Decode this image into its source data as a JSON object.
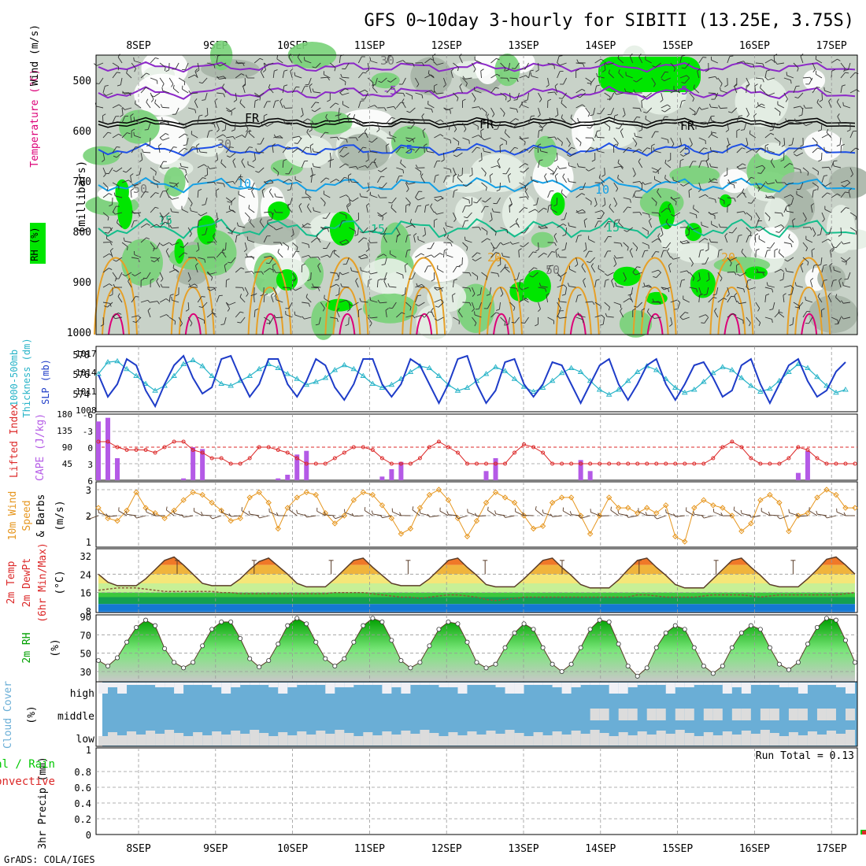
{
  "title": "GFS 0~10day 3-hourly for SIBITI (13.25E, 3.75S)",
  "credit": "GrADS: COLA/IGES",
  "dates": [
    "8SEP",
    "9SEP",
    "10SEP",
    "11SEP",
    "12SEP",
    "13SEP",
    "14SEP",
    "15SEP",
    "16SEP",
    "17SEP"
  ],
  "colors": {
    "rh_light": "#e6f0e6",
    "rh_mid": "#c8d2c8",
    "rh_dark": "#a6b4a6",
    "rh_green": "#78d278",
    "rh_bright": "#00e600",
    "temp_purple": "#8c28c8",
    "temp_blue": "#1e50e6",
    "temp_cyan": "#14a0e6",
    "temp_teal": "#14be8c",
    "temp_orange": "#e6a028",
    "temp_magenta": "#dc0078",
    "slp": "#1e3cc8",
    "thickness": "#28b4c8",
    "lifted": "#dc2828",
    "cape": "#b45ae6",
    "wind": "#e6961e",
    "barb": "#5a3c28",
    "rh2m": "#00a000",
    "cloud": "#6aaed6",
    "precip_total": "#00c800",
    "precip_conv": "#dc2828"
  },
  "panels": {
    "upper": {
      "labels": [
        "RH (%)",
        "Temperature (°C)",
        "Wind (m/s)"
      ],
      "axis": "(millibars)",
      "levels": [
        "500",
        "600",
        "700",
        "800",
        "900",
        "1000"
      ],
      "contour_labels": [
        "-5",
        "FR",
        "5",
        "10",
        "15",
        "20",
        "30",
        "50"
      ]
    },
    "slp": {
      "labels": [
        "1000-500mb",
        "Thickness (dm)",
        "SLP (mb)"
      ],
      "left_ticks": [
        "578",
        "576",
        "574"
      ],
      "right_ticks": [
        "1017",
        "1014",
        "1011",
        "1008"
      ]
    },
    "cape": {
      "labels": [
        "Lifted Index",
        "CAPE (J/kg)"
      ],
      "left_ticks": [
        "-6",
        "-3",
        "0",
        "3",
        "6"
      ],
      "right_ticks": [
        "180",
        "135",
        "90",
        "45"
      ]
    },
    "wind": {
      "labels": [
        "10m Wind",
        "Speed",
        "& Barbs",
        "(m/s)"
      ],
      "ticks": [
        "3",
        "2",
        "1"
      ]
    },
    "temp": {
      "labels": [
        "2m Temp",
        "2m DewPt",
        "(6hr Min/Max)",
        "(°C)"
      ],
      "ticks": [
        "32",
        "24",
        "16",
        "8"
      ]
    },
    "rh": {
      "labels": [
        "2m RH",
        "(%)"
      ],
      "ticks": [
        "90",
        "70",
        "50",
        "30"
      ]
    },
    "cloud": {
      "labels": [
        "Cloud Cover",
        "(%)"
      ],
      "rows": [
        "high",
        "middle",
        "low"
      ]
    },
    "precip": {
      "labels": [
        "Total / Rain",
        "Convective",
        "3hr Precip (mm)"
      ],
      "ticks": [
        "0.8",
        "0.6",
        "0.4",
        "0.2",
        "0"
      ],
      "ticks_top": "1",
      "run_total": "Run Total = 0.13"
    }
  },
  "chart_data": [
    {
      "type": "line",
      "title": "1000-500mb Thickness (dm) / SLP (mb)",
      "series": [
        {
          "name": "SLP (mb)",
          "values": [
            1013.5,
            1010,
            1012,
            1016,
            1015,
            1011,
            1008.5,
            1012,
            1015,
            1016.5,
            1013,
            1010.5,
            1011.5,
            1016,
            1016.5,
            1013,
            1010,
            1012,
            1016,
            1016,
            1012,
            1010,
            1012.5,
            1016,
            1015,
            1011.5,
            1009.5,
            1012,
            1016,
            1016,
            1012,
            1010,
            1012,
            1016,
            1015,
            1012,
            1009,
            1012,
            1016,
            1016.5,
            1012,
            1009,
            1011,
            1015.5,
            1016,
            1012,
            1010,
            1012,
            1015.5,
            1015,
            1012,
            1009,
            1012,
            1015,
            1016,
            1012,
            1009.5,
            1012,
            1015,
            1016,
            1012,
            1009.5,
            1012,
            1015,
            1015.5,
            1013,
            1010,
            1011,
            1015,
            1016,
            1012,
            1009,
            1012,
            1015,
            1016,
            1012.5,
            1010,
            1011,
            1014,
            1015.5
          ]
        },
        {
          "name": "1000-500mb Thickness (dm)",
          "values": [
            576,
            577.2,
            577.3,
            576.5,
            575.8,
            575,
            574.3,
            574.8,
            575.8,
            577,
            577.4,
            576.8,
            575.8,
            575,
            574.8,
            575.3,
            575.8,
            576.5,
            577,
            576.6,
            576,
            575.5,
            574.9,
            575.2,
            575.6,
            576.4,
            576.9,
            576.5,
            575.8,
            575,
            574.6,
            574.9,
            575.5,
            576.2,
            576.8,
            576.6,
            575.8,
            574.9,
            574.3,
            574.6,
            575.3,
            576,
            576.7,
            576.3,
            575.5,
            574.7,
            574.2,
            574.6,
            575.3,
            576.1,
            576.6,
            576.2,
            575.3,
            574.4,
            573.9,
            574.4,
            575.3,
            576.2,
            576.8,
            576.4,
            575.5,
            574.6,
            574.1,
            574.4,
            575.2,
            576.1,
            576.7,
            576.4,
            575.6,
            574.8,
            574.2,
            574.5,
            575.3,
            576.2,
            577,
            576.6,
            575.7,
            574.8,
            574.1,
            574.4
          ]
        }
      ]
    },
    {
      "type": "bar",
      "title": "Lifted Index / CAPE (J/kg)",
      "series": [
        {
          "name": "CAPE (J/kg)",
          "values": [
            160,
            170,
            60,
            0,
            0,
            0,
            0,
            0,
            0,
            5,
            90,
            85,
            0,
            0,
            0,
            0,
            0,
            0,
            0,
            5,
            15,
            70,
            80,
            0,
            0,
            0,
            0,
            0,
            0,
            0,
            10,
            30,
            50,
            0,
            0,
            0,
            0,
            0,
            0,
            0,
            0,
            25,
            60,
            0,
            0,
            0,
            0,
            0,
            0,
            0,
            0,
            55,
            25,
            0,
            0,
            0,
            0,
            0,
            0,
            0,
            0,
            0,
            0,
            0,
            0,
            0,
            0,
            0,
            0,
            0,
            0,
            0,
            0,
            0,
            20,
            80,
            0,
            0,
            0,
            0,
            0,
            0,
            0,
            95,
            85,
            20,
            0,
            0
          ]
        },
        {
          "name": "Lifted Index",
          "values": [
            -1,
            -1,
            0,
            0.5,
            0.5,
            0.5,
            1,
            0,
            -1,
            -1,
            0.5,
            1,
            2,
            2,
            3,
            3,
            2,
            0,
            0,
            0.5,
            1,
            2,
            3,
            3,
            3,
            2,
            1,
            0,
            0,
            0.5,
            2,
            3,
            3,
            3,
            2,
            0,
            -1,
            0,
            1,
            3,
            3,
            3,
            3,
            3,
            1,
            -0.5,
            0,
            1,
            3,
            3,
            3,
            3,
            3,
            3,
            3,
            3,
            3,
            3,
            3,
            3,
            3,
            3,
            3,
            3,
            3,
            2,
            0,
            -1,
            0,
            2,
            3,
            3,
            3,
            2,
            0,
            0.5,
            2,
            3,
            3,
            3,
            3,
            2,
            -0.5,
            0,
            1,
            3,
            3,
            3
          ]
        }
      ]
    },
    {
      "type": "line",
      "title": "10m Wind Speed & Barbs (m/s)",
      "series": [
        {
          "name": "Speed",
          "values": [
            2.3,
            1.9,
            1.8,
            2.2,
            2.9,
            2.3,
            2.1,
            1.9,
            2.2,
            2.6,
            2.9,
            2.8,
            2.5,
            2.2,
            1.8,
            1.9,
            2.7,
            2.9,
            2.5,
            1.5,
            2.3,
            2.7,
            2.9,
            2.8,
            2.1,
            1.7,
            2.0,
            2.6,
            2.9,
            2.8,
            2.4,
            1.9,
            1.3,
            1.5,
            2.3,
            2.8,
            3.0,
            2.6,
            1.9,
            1.2,
            1.8,
            2.5,
            2.9,
            2.7,
            2.5,
            2.0,
            1.5,
            1.6,
            2.5,
            2.7,
            2.7,
            2.0,
            1.3,
            2.0,
            2.7,
            2.3,
            2.3,
            2.1,
            2.3,
            2.1,
            2.4,
            1.2,
            1.0,
            2.3,
            2.6,
            2.4,
            2.3,
            2.0,
            1.4,
            1.7,
            2.6,
            2.8,
            2.5,
            1.4,
            2.0,
            2.1,
            2.7,
            3.0,
            2.8,
            2.3,
            2.3,
            2.0,
            2.2
          ]
        }
      ]
    },
    {
      "type": "area",
      "title": "2m Temp / 2m DewPt (°C)",
      "series": [
        {
          "name": "2m Temp",
          "values": [
            24,
            20.5,
            19,
            19,
            19,
            22,
            26,
            30,
            31.5,
            28,
            24,
            20,
            19,
            19,
            19,
            22,
            26,
            29.5,
            31,
            27.5,
            24,
            20,
            18.5,
            18.5,
            18.5,
            22,
            26,
            30,
            31,
            27,
            23.5,
            20,
            19,
            19,
            19,
            22,
            26,
            30,
            31,
            27,
            23.5,
            19.5,
            18.5,
            18.5,
            18.5,
            22,
            26,
            30,
            31,
            27,
            23.5,
            19.5,
            18,
            18,
            18,
            21.5,
            26,
            30,
            31,
            27,
            23.5,
            19.5,
            18,
            18,
            18,
            22,
            26,
            30,
            31,
            27,
            23.5,
            19.5,
            18.5,
            18.5,
            18.5,
            22,
            26,
            30.5,
            31.5,
            28,
            24,
            20,
            18,
            18
          ]
        },
        {
          "name": "2m DewPt",
          "values": [
            17,
            17.5,
            18,
            18,
            18,
            17.5,
            17,
            16.5,
            16.5,
            16.5,
            16.5,
            16.5,
            16.5,
            16,
            16,
            15.5,
            15.5,
            15.5,
            15.5,
            15.5,
            15.5,
            15.5,
            15.5,
            15.5,
            15.5,
            16,
            16,
            16,
            16,
            15.5,
            15,
            14.5,
            14,
            14,
            13.5,
            14,
            14.5,
            15,
            15,
            14.5,
            14,
            13,
            12.5,
            13,
            13.5,
            14,
            14,
            14,
            14,
            14,
            14,
            14,
            14,
            14,
            14,
            14,
            14,
            15,
            15,
            14.5,
            14,
            14,
            14,
            14,
            14.5,
            15,
            15,
            15,
            15,
            14.5,
            14,
            14.5,
            15,
            15,
            15,
            15,
            15,
            15,
            15,
            15.5,
            16,
            16,
            17
          ]
        }
      ]
    },
    {
      "type": "area",
      "title": "2m RH (%)",
      "series": [
        {
          "name": "2m RH",
          "values": [
            42,
            36,
            45,
            62,
            78,
            86,
            80,
            55,
            40,
            34,
            40,
            58,
            76,
            84,
            84,
            66,
            44,
            35,
            42,
            60,
            80,
            88,
            82,
            62,
            44,
            36,
            44,
            62,
            80,
            88,
            84,
            64,
            42,
            34,
            40,
            58,
            76,
            84,
            82,
            62,
            40,
            34,
            38,
            56,
            72,
            82,
            76,
            56,
            38,
            30,
            38,
            56,
            76,
            86,
            84,
            60,
            36,
            25,
            34,
            56,
            72,
            80,
            76,
            56,
            36,
            28,
            36,
            56,
            72,
            80,
            76,
            56,
            38,
            32,
            40,
            60,
            78,
            88,
            86,
            64,
            40,
            32,
            44,
            64,
            84,
            86
          ]
        }
      ]
    },
    {
      "type": "bar",
      "title": "3hr Precip (mm)",
      "series": [
        {
          "name": "Total / Rain",
          "values": [
            0,
            0,
            0,
            0,
            0,
            0,
            0,
            0,
            0,
            0,
            0,
            0,
            0,
            0,
            0,
            0,
            0,
            0,
            0,
            0,
            0,
            0,
            0,
            0,
            0,
            0,
            0,
            0,
            0,
            0,
            0,
            0,
            0,
            0,
            0,
            0,
            0,
            0,
            0,
            0,
            0,
            0,
            0,
            0,
            0,
            0,
            0,
            0,
            0,
            0,
            0,
            0,
            0,
            0,
            0,
            0,
            0,
            0,
            0,
            0,
            0,
            0,
            0,
            0,
            0,
            0,
            0,
            0,
            0,
            0,
            0,
            0,
            0,
            0,
            0,
            0,
            0,
            0,
            0,
            0,
            0,
            0.06,
            0.07,
            0
          ]
        },
        {
          "name": "Convective",
          "values": [
            0,
            0,
            0,
            0,
            0,
            0,
            0,
            0,
            0,
            0,
            0,
            0,
            0,
            0,
            0,
            0,
            0,
            0,
            0,
            0,
            0,
            0,
            0,
            0,
            0,
            0,
            0,
            0,
            0,
            0,
            0,
            0,
            0,
            0,
            0,
            0,
            0,
            0,
            0,
            0,
            0,
            0,
            0,
            0,
            0,
            0,
            0,
            0,
            0,
            0,
            0,
            0,
            0,
            0,
            0,
            0,
            0,
            0,
            0,
            0,
            0,
            0,
            0,
            0,
            0,
            0,
            0,
            0,
            0,
            0,
            0,
            0,
            0,
            0,
            0,
            0,
            0,
            0,
            0,
            0,
            0,
            0.05,
            0.06,
            0
          ]
        }
      ]
    }
  ]
}
